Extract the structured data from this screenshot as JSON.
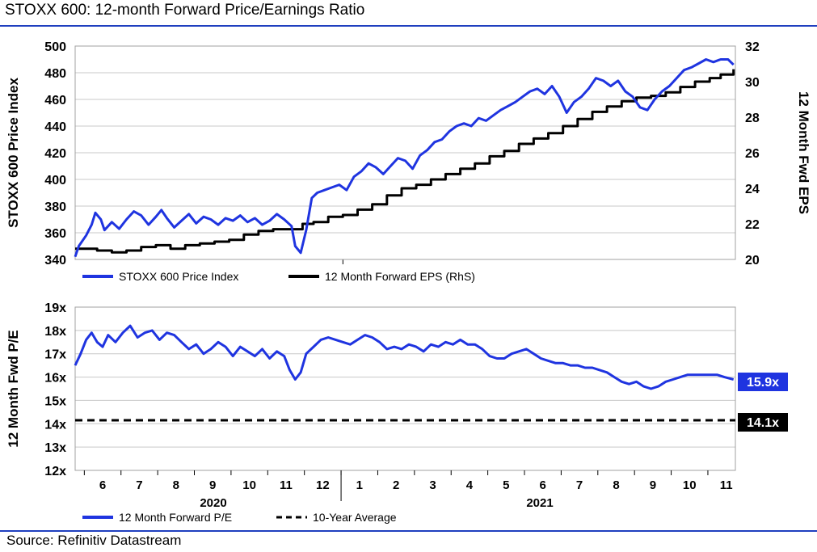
{
  "header": {
    "title": "STOXX 600: 12-month Forward Price/Earnings Ratio"
  },
  "footer": {
    "source": "Source: Refinitiv Datastream"
  },
  "colors": {
    "blue": "#1f34e0",
    "black": "#000000",
    "rule": "#1f3fbf",
    "grid": "#c8c8c8"
  },
  "chart_data": [
    {
      "type": "line",
      "ylabel": "STOXX 600 Price Index",
      "y2label": "12 Month Fwd EPS",
      "ylim": [
        340,
        500
      ],
      "yticks": [
        "340",
        "360",
        "380",
        "400",
        "420",
        "440",
        "460",
        "480",
        "500"
      ],
      "y2lim": [
        20,
        32
      ],
      "y2ticks": [
        "20",
        "22",
        "24",
        "26",
        "28",
        "30",
        "32"
      ],
      "xlim": [
        0,
        18
      ],
      "grid": true,
      "legend": "bottom",
      "series": [
        {
          "name": "STOXX 600 Price Index",
          "axis": "left",
          "x": [
            0.0,
            0.1,
            0.3,
            0.45,
            0.55,
            0.7,
            0.8,
            1.0,
            1.2,
            1.4,
            1.6,
            1.8,
            2.0,
            2.2,
            2.35,
            2.5,
            2.7,
            2.9,
            3.1,
            3.3,
            3.5,
            3.7,
            3.9,
            4.1,
            4.3,
            4.5,
            4.7,
            4.9,
            5.1,
            5.3,
            5.5,
            5.7,
            5.9,
            6.0,
            6.15,
            6.3,
            6.45,
            6.6,
            6.8,
            7.0,
            7.2,
            7.4,
            7.6,
            7.8,
            8.0,
            8.2,
            8.4,
            8.6,
            8.8,
            9.0,
            9.2,
            9.4,
            9.6,
            9.8,
            10.0,
            10.2,
            10.4,
            10.6,
            10.8,
            11.0,
            11.2,
            11.4,
            11.6,
            11.8,
            12.0,
            12.2,
            12.4,
            12.6,
            12.8,
            13.0,
            13.2,
            13.4,
            13.6,
            13.8,
            14.0,
            14.2,
            14.4,
            14.6,
            14.8,
            15.0,
            15.2,
            15.4,
            15.6,
            15.8,
            16.0,
            16.2,
            16.4,
            16.6,
            16.8,
            17.0,
            17.2,
            17.4,
            17.6,
            17.8,
            17.95
          ],
          "values": [
            342,
            350,
            358,
            366,
            375,
            370,
            362,
            368,
            363,
            370,
            376,
            373,
            366,
            372,
            377,
            371,
            364,
            369,
            374,
            367,
            372,
            370,
            366,
            371,
            369,
            373,
            368,
            371,
            366,
            369,
            374,
            370,
            365,
            350,
            345,
            362,
            386,
            390,
            392,
            394,
            396,
            392,
            402,
            406,
            412,
            409,
            404,
            410,
            416,
            414,
            408,
            418,
            422,
            428,
            430,
            436,
            440,
            442,
            440,
            446,
            444,
            448,
            452,
            455,
            458,
            462,
            466,
            468,
            464,
            470,
            462,
            450,
            458,
            462,
            468,
            476,
            474,
            470,
            474,
            466,
            462,
            454,
            452,
            460,
            466,
            470,
            476,
            482,
            484,
            487,
            490,
            488,
            490,
            490,
            486
          ]
        },
        {
          "name": "12 Month Forward EPS (RhS)",
          "axis": "right",
          "x": [
            0.0,
            0.3,
            0.6,
            1.0,
            1.4,
            1.8,
            2.2,
            2.6,
            3.0,
            3.4,
            3.8,
            4.2,
            4.6,
            5.0,
            5.4,
            5.8,
            6.2,
            6.5,
            6.9,
            7.3,
            7.7,
            8.1,
            8.5,
            8.9,
            9.3,
            9.7,
            10.1,
            10.5,
            10.9,
            11.3,
            11.7,
            12.1,
            12.5,
            12.9,
            13.3,
            13.7,
            14.1,
            14.5,
            14.9,
            15.3,
            15.7,
            16.1,
            16.5,
            16.9,
            17.3,
            17.6,
            17.95
          ],
          "values": [
            20.6,
            20.6,
            20.5,
            20.4,
            20.5,
            20.7,
            20.8,
            20.6,
            20.8,
            20.9,
            21.0,
            21.1,
            21.4,
            21.6,
            21.7,
            21.7,
            22.0,
            22.1,
            22.4,
            22.5,
            22.8,
            23.1,
            23.6,
            24.0,
            24.2,
            24.5,
            24.8,
            25.1,
            25.4,
            25.8,
            26.1,
            26.5,
            26.8,
            27.1,
            27.5,
            27.9,
            28.3,
            28.6,
            28.9,
            29.1,
            29.2,
            29.4,
            29.7,
            30.0,
            30.2,
            30.4,
            30.7
          ]
        }
      ]
    },
    {
      "type": "line",
      "ylabel": "12 Month Fwd P/E",
      "ylim": [
        12,
        19
      ],
      "yticks": [
        "12x",
        "13x",
        "14x",
        "15x",
        "16x",
        "17x",
        "18x",
        "19x"
      ],
      "xlim": [
        0,
        18
      ],
      "categories": [
        "6",
        "7",
        "8",
        "9",
        "10",
        "11",
        "12",
        "1",
        "2",
        "3",
        "4",
        "5",
        "6",
        "7",
        "8",
        "9",
        "10",
        "11"
      ],
      "year_labels": [
        "2020",
        "2021"
      ],
      "grid": true,
      "legend": "bottom",
      "series": [
        {
          "name": "12 Month Forward P/E",
          "x": [
            0.0,
            0.15,
            0.3,
            0.45,
            0.6,
            0.75,
            0.9,
            1.1,
            1.3,
            1.5,
            1.7,
            1.9,
            2.1,
            2.3,
            2.5,
            2.7,
            2.9,
            3.1,
            3.3,
            3.5,
            3.7,
            3.9,
            4.1,
            4.3,
            4.5,
            4.7,
            4.9,
            5.1,
            5.3,
            5.5,
            5.7,
            5.85,
            6.0,
            6.15,
            6.3,
            6.5,
            6.7,
            6.9,
            7.1,
            7.3,
            7.5,
            7.7,
            7.9,
            8.1,
            8.3,
            8.5,
            8.7,
            8.9,
            9.1,
            9.3,
            9.5,
            9.7,
            9.9,
            10.1,
            10.3,
            10.5,
            10.7,
            10.9,
            11.1,
            11.3,
            11.5,
            11.7,
            11.9,
            12.1,
            12.3,
            12.5,
            12.7,
            12.9,
            13.1,
            13.3,
            13.5,
            13.7,
            13.9,
            14.1,
            14.3,
            14.5,
            14.7,
            14.9,
            15.1,
            15.3,
            15.5,
            15.7,
            15.9,
            16.1,
            16.3,
            16.5,
            16.7,
            16.9,
            17.1,
            17.3,
            17.5,
            17.7,
            17.95
          ],
          "values": [
            16.5,
            17.0,
            17.6,
            17.9,
            17.5,
            17.3,
            17.8,
            17.5,
            17.9,
            18.2,
            17.7,
            17.9,
            18.0,
            17.6,
            17.9,
            17.8,
            17.5,
            17.2,
            17.4,
            17.0,
            17.2,
            17.5,
            17.3,
            16.9,
            17.3,
            17.1,
            16.9,
            17.2,
            16.8,
            17.1,
            16.9,
            16.3,
            15.9,
            16.2,
            17.0,
            17.3,
            17.6,
            17.7,
            17.6,
            17.5,
            17.4,
            17.6,
            17.8,
            17.7,
            17.5,
            17.2,
            17.3,
            17.2,
            17.4,
            17.3,
            17.1,
            17.4,
            17.3,
            17.5,
            17.4,
            17.6,
            17.4,
            17.4,
            17.2,
            16.9,
            16.8,
            16.8,
            17.0,
            17.1,
            17.2,
            17.0,
            16.8,
            16.7,
            16.6,
            16.6,
            16.5,
            16.5,
            16.4,
            16.4,
            16.3,
            16.2,
            16.0,
            15.8,
            15.7,
            15.8,
            15.6,
            15.5,
            15.6,
            15.8,
            15.9,
            16.0,
            16.1,
            16.1,
            16.1,
            16.1,
            16.1,
            16.0,
            15.9
          ]
        },
        {
          "name": "10-Year Average",
          "dashed": true,
          "x": [
            0,
            18
          ],
          "values": [
            14.15,
            14.15
          ]
        }
      ],
      "end_labels": {
        "pe": "15.9x",
        "avg": "14.1x"
      }
    }
  ]
}
